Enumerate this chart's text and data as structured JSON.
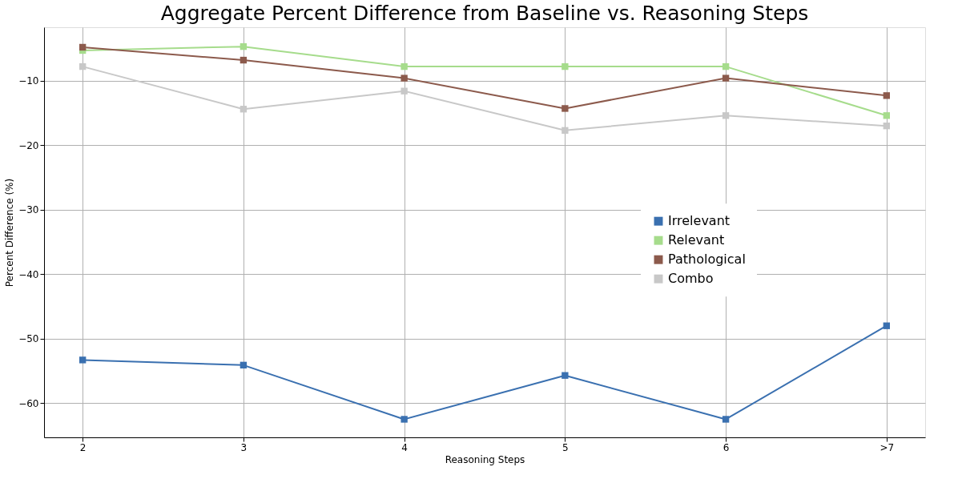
{
  "chart_data": {
    "type": "line",
    "title": "Aggregate Percent Difference from Baseline vs. Reasoning Steps",
    "xlabel": "Reasoning Steps",
    "ylabel": "Percent Difference (%)",
    "categories": [
      "2",
      "3",
      "4",
      "5",
      "6",
      ">7"
    ],
    "series": [
      {
        "name": "Irrelevant",
        "color": "#3a70b0",
        "values": [
          -53.3,
          -54.1,
          -62.5,
          -55.7,
          -62.5,
          -48.0
        ]
      },
      {
        "name": "Relevant",
        "color": "#a6dc8c",
        "values": [
          -5.3,
          -4.7,
          -7.8,
          -7.8,
          -7.8,
          -15.4
        ]
      },
      {
        "name": "Pathological",
        "color": "#8c5a4c",
        "values": [
          -4.8,
          -6.8,
          -9.6,
          -14.3,
          -9.6,
          -12.3
        ]
      },
      {
        "name": "Combo",
        "color": "#c8c8c8",
        "values": [
          -7.8,
          -14.4,
          -11.6,
          -17.7,
          -15.4,
          -17.0
        ]
      }
    ],
    "ylim": [
      -65.3,
      -1.7
    ],
    "yticks": [
      -60,
      -50,
      -40,
      -30,
      -20,
      -10
    ],
    "grid": true,
    "legend": "right",
    "marker": "square",
    "line_style": "solid"
  }
}
